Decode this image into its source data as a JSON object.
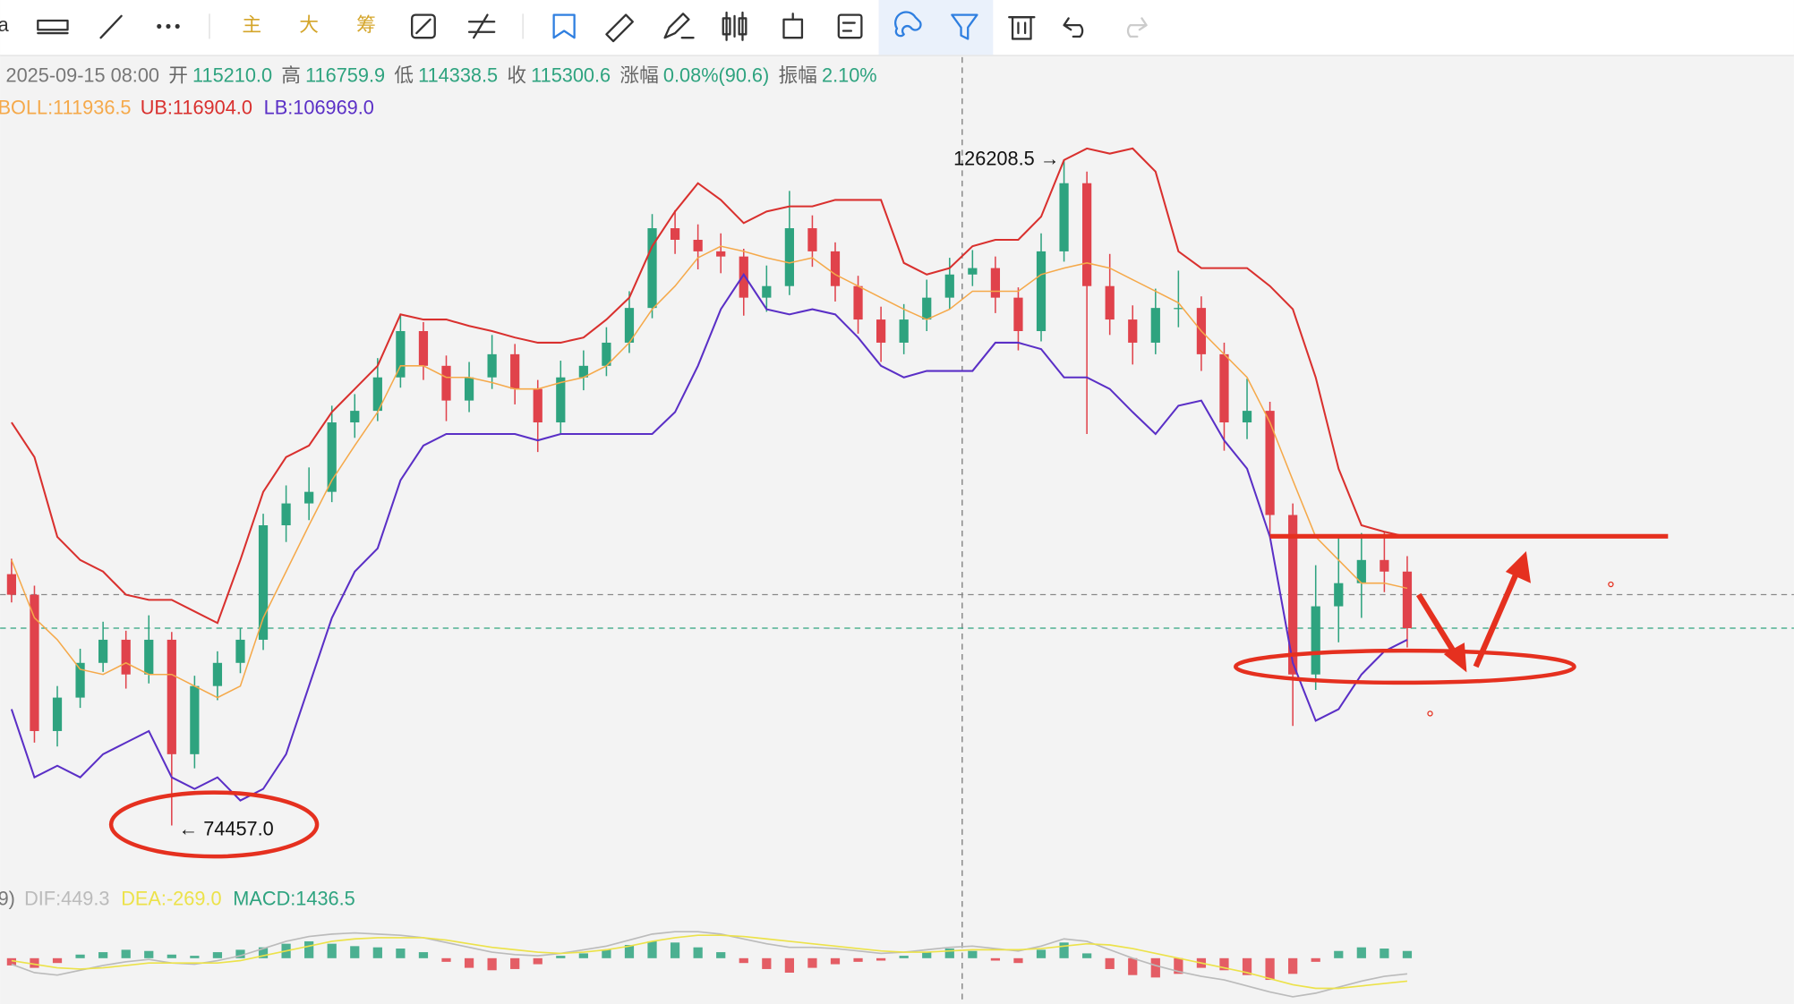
{
  "toolbar": {
    "cut": "a",
    "tabs": [
      "主",
      "大",
      "筹"
    ]
  },
  "chart_data": {
    "type": "candlestick",
    "header": {
      "date": "2025-09-15 08:00",
      "items": [
        {
          "label": "开",
          "value": "115210.0"
        },
        {
          "label": "高",
          "value": "116759.9"
        },
        {
          "label": "低",
          "value": "114338.5"
        },
        {
          "label": "收",
          "value": "115300.6"
        },
        {
          "label": "涨幅",
          "value": "0.08%(90.6)"
        },
        {
          "label": "振幅",
          "value": "2.10%"
        }
      ]
    },
    "ylim": [
      70000,
      134200
    ],
    "up_color": "#2ea37f",
    "down_color": "#e0424b",
    "candles": [
      [
        94000,
        95200,
        91800,
        92400
      ],
      [
        92400,
        93100,
        80900,
        81800
      ],
      [
        81800,
        85300,
        80600,
        84400
      ],
      [
        84400,
        88200,
        83600,
        87100
      ],
      [
        87100,
        90300,
        86400,
        88900
      ],
      [
        88900,
        89600,
        85100,
        86200
      ],
      [
        86200,
        90800,
        85500,
        88900
      ],
      [
        88900,
        89500,
        74457,
        80000
      ],
      [
        80000,
        86100,
        78900,
        85300
      ],
      [
        85300,
        88000,
        84200,
        87100
      ],
      [
        87100,
        89800,
        86300,
        88900
      ],
      [
        88900,
        98700,
        88100,
        97800
      ],
      [
        97800,
        100900,
        96500,
        99500
      ],
      [
        99500,
        102300,
        98200,
        100400
      ],
      [
        100400,
        107100,
        99600,
        105800
      ],
      [
        105800,
        108000,
        104600,
        106700
      ],
      [
        106700,
        110800,
        105900,
        109300
      ],
      [
        109300,
        114100,
        108500,
        112900
      ],
      [
        112900,
        113600,
        109100,
        110200
      ],
      [
        110200,
        111000,
        105900,
        107500
      ],
      [
        107500,
        110500,
        106600,
        109300
      ],
      [
        109300,
        112600,
        108400,
        111100
      ],
      [
        111100,
        111900,
        107200,
        108400
      ],
      [
        108400,
        109100,
        103500,
        105800
      ],
      [
        105800,
        110600,
        104900,
        109300
      ],
      [
        109300,
        111400,
        108300,
        110200
      ],
      [
        110200,
        113200,
        109400,
        112000
      ],
      [
        112000,
        116000,
        111200,
        114700
      ],
      [
        114700,
        122000,
        113900,
        120900
      ],
      [
        120900,
        122300,
        118900,
        120000
      ],
      [
        120000,
        121200,
        117700,
        119100
      ],
      [
        119100,
        120500,
        117400,
        118700
      ],
      [
        118700,
        119300,
        114100,
        115500
      ],
      [
        115500,
        118000,
        114400,
        116400
      ],
      [
        116400,
        123800,
        115700,
        120900
      ],
      [
        120900,
        121900,
        117900,
        119100
      ],
      [
        119100,
        119800,
        115200,
        116400
      ],
      [
        116400,
        117200,
        112700,
        113800
      ],
      [
        113800,
        114800,
        110500,
        112000
      ],
      [
        112000,
        115000,
        111100,
        113800
      ],
      [
        113800,
        116900,
        112900,
        115500
      ],
      [
        115500,
        118600,
        114600,
        117300
      ],
      [
        117300,
        119200,
        116400,
        117800
      ],
      [
        117800,
        118700,
        114300,
        115500
      ],
      [
        115500,
        116300,
        111400,
        112900
      ],
      [
        112900,
        120500,
        112100,
        119100
      ],
      [
        119100,
        126208.5,
        118300,
        124400
      ],
      [
        124400,
        125300,
        104900,
        116400
      ],
      [
        116400,
        118900,
        112600,
        113800
      ],
      [
        113800,
        114900,
        110300,
        112000
      ],
      [
        112000,
        116200,
        111100,
        114700
      ],
      [
        114700,
        117600,
        113200,
        114700
      ],
      [
        114700,
        115600,
        109800,
        111100
      ],
      [
        111100,
        112000,
        103600,
        105800
      ],
      [
        105800,
        109200,
        104500,
        106700
      ],
      [
        106700,
        107400,
        97100,
        98600
      ],
      [
        98600,
        99500,
        82200,
        86200
      ],
      [
        86200,
        94700,
        85000,
        91500
      ],
      [
        91500,
        97000,
        88700,
        93300
      ],
      [
        93300,
        97200,
        90600,
        95100
      ],
      [
        95100,
        97300,
        92600,
        94200
      ],
      [
        94200,
        95400,
        88300,
        89800
      ]
    ],
    "boll": {
      "label": "BOLL:111936.5",
      "color": "#f5a94a",
      "values": [
        95100,
        90600,
        88900,
        86600,
        86200,
        87100,
        86200,
        86200,
        85300,
        84400,
        85300,
        90600,
        94200,
        97800,
        101300,
        104000,
        106600,
        110200,
        110200,
        109300,
        109300,
        108900,
        108400,
        108400,
        108900,
        109300,
        110200,
        112000,
        114600,
        116400,
        118600,
        119500,
        119100,
        118600,
        118200,
        118600,
        117300,
        116400,
        115500,
        114600,
        113800,
        114600,
        116000,
        116000,
        116000,
        117300,
        117800,
        118200,
        117800,
        116900,
        116000,
        115100,
        112900,
        111100,
        109300,
        105800,
        101300,
        96900,
        95100,
        93300,
        93300,
        92900
      ]
    },
    "ub": {
      "label": "UB:116904.0",
      "color": "#d9302e",
      "values": [
        105800,
        103100,
        96900,
        95100,
        94200,
        92400,
        92000,
        92000,
        91100,
        90200,
        95100,
        100400,
        103100,
        104000,
        106600,
        108400,
        110200,
        114200,
        113800,
        113800,
        113300,
        112900,
        112400,
        112000,
        112000,
        112400,
        113800,
        115500,
        119500,
        122200,
        124400,
        123100,
        121300,
        122200,
        122600,
        122600,
        123100,
        123100,
        123100,
        118200,
        117300,
        117800,
        119500,
        120000,
        120000,
        121800,
        126200,
        127100,
        126700,
        127100,
        125300,
        119100,
        117800,
        117800,
        117800,
        116400,
        114600,
        109300,
        102200,
        97800,
        97300,
        96900
      ]
    },
    "lb": {
      "label": "LB:106969.0",
      "color": "#5a2fc6",
      "values": [
        83500,
        78200,
        79100,
        78200,
        80000,
        80900,
        81800,
        78200,
        77300,
        78200,
        76400,
        77300,
        80000,
        85300,
        90600,
        94200,
        96000,
        101300,
        104000,
        104900,
        104900,
        104900,
        104900,
        104400,
        104900,
        104900,
        104900,
        104900,
        104900,
        106600,
        110200,
        114600,
        117300,
        114600,
        114200,
        114600,
        114200,
        112400,
        110200,
        109300,
        109800,
        109800,
        109800,
        112000,
        112000,
        111500,
        109300,
        109300,
        108400,
        106600,
        104900,
        107100,
        107500,
        104400,
        102200,
        96900,
        87100,
        82600,
        83500,
        86200,
        88000,
        88900
      ]
    },
    "max_label": "126208.5 →",
    "min_label": "← 74457.0",
    "macd": {
      "prefix": "9)",
      "label": "MACD:1436.5",
      "label_color": "#2ea37f",
      "ylim": [
        -3800,
        3600
      ],
      "hist": [
        -600,
        -800,
        -400,
        300,
        500,
        700,
        600,
        300,
        200,
        500,
        700,
        900,
        1200,
        1400,
        1200,
        1000,
        900,
        800,
        500,
        -300,
        -800,
        -1000,
        -900,
        -500,
        200,
        400,
        700,
        1100,
        1400,
        1300,
        900,
        500,
        -400,
        -900,
        -1200,
        -800,
        -500,
        -300,
        -200,
        200,
        500,
        800,
        600,
        -200,
        -400,
        700,
        1300,
        400,
        -900,
        -1400,
        -1600,
        -1300,
        -800,
        -1000,
        -1400,
        -1800,
        -1300,
        -300,
        600,
        900,
        800,
        600
      ],
      "dif": {
        "label": "DIF:449.3",
        "color": "#bbbbbb",
        "values": [
          -500,
          -1200,
          -1400,
          -1000,
          -600,
          -300,
          -100,
          -400,
          -500,
          -200,
          200,
          800,
          1400,
          1800,
          2000,
          2100,
          2000,
          1900,
          1700,
          1300,
          900,
          500,
          300,
          200,
          400,
          700,
          1000,
          1500,
          2000,
          2200,
          2200,
          2000,
          1600,
          1200,
          900,
          900,
          800,
          600,
          400,
          500,
          700,
          900,
          1000,
          800,
          600,
          1000,
          1600,
          1400,
          700,
          0,
          -600,
          -1100,
          -1500,
          -1800,
          -2300,
          -2800,
          -3200,
          -2900,
          -2400,
          -1900,
          -1500,
          -1300
        ]
      },
      "dea": {
        "label": "DEA:-269.0",
        "color": "#ece24a",
        "values": [
          -200,
          -500,
          -800,
          -900,
          -800,
          -600,
          -400,
          -400,
          -400,
          -400,
          -200,
          200,
          600,
          1000,
          1400,
          1600,
          1700,
          1700,
          1700,
          1500,
          1200,
          900,
          700,
          500,
          400,
          500,
          700,
          1000,
          1400,
          1700,
          1900,
          1900,
          1800,
          1600,
          1400,
          1200,
          1000,
          800,
          600,
          500,
          500,
          600,
          700,
          700,
          700,
          800,
          1000,
          1200,
          1100,
          800,
          400,
          0,
          -400,
          -800,
          -1200,
          -1700,
          -2200,
          -2500,
          -2500,
          -2300,
          -2100,
          -1900
        ]
      }
    }
  }
}
